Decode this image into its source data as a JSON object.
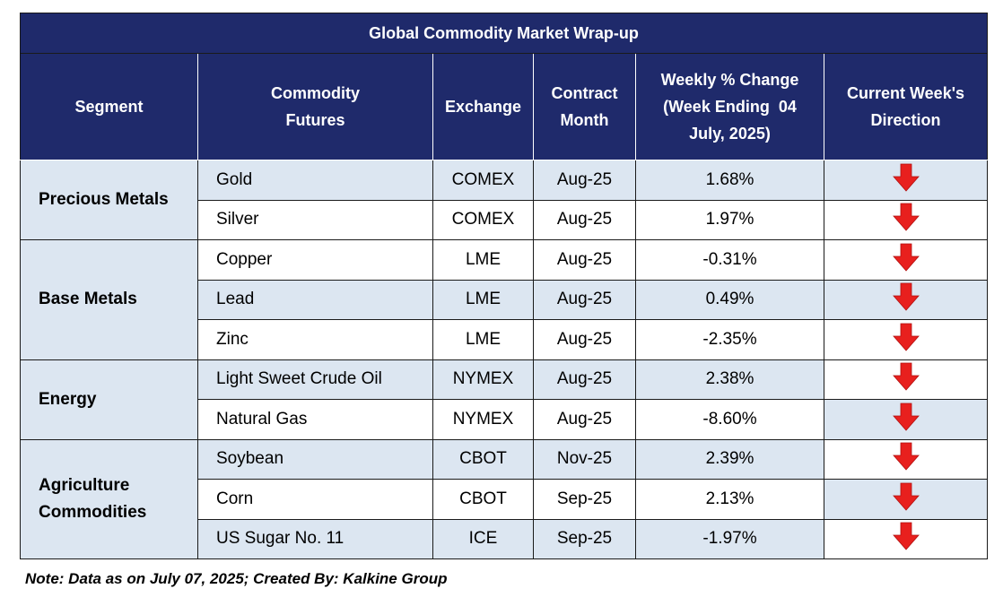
{
  "title": "Global Commodity Market Wrap-up",
  "headers": {
    "segment": "Segment",
    "futures_l1": "Commodity",
    "futures_l2": "Futures",
    "exchange": "Exchange",
    "month_l1": "Contract",
    "month_l2": "Month",
    "change_l1": "Weekly % Change",
    "change_l2": "(Week Ending  04",
    "change_l3": "July, 2025)",
    "direction_l1": "Current Week's",
    "direction_l2": "Direction"
  },
  "segments": {
    "precious": "Precious Metals",
    "base": "Base Metals",
    "energy": "Energy",
    "agri_l1": "Agriculture",
    "agri_l2": "Commodities"
  },
  "rows": [
    {
      "commodity": "Gold",
      "exchange": "COMEX",
      "month": "Aug-25",
      "change": "1.68%",
      "direction": "down"
    },
    {
      "commodity": "Silver",
      "exchange": "COMEX",
      "month": "Aug-25",
      "change": "1.97%",
      "direction": "down"
    },
    {
      "commodity": "Copper",
      "exchange": "LME",
      "month": "Aug-25",
      "change": "-0.31%",
      "direction": "down"
    },
    {
      "commodity": "Lead",
      "exchange": "LME",
      "month": "Aug-25",
      "change": "0.49%",
      "direction": "down"
    },
    {
      "commodity": "Zinc",
      "exchange": "LME",
      "month": "Aug-25",
      "change": "-2.35%",
      "direction": "down"
    },
    {
      "commodity": "Light Sweet Crude Oil",
      "exchange": "NYMEX",
      "month": "Aug-25",
      "change": "2.38%",
      "direction": "down"
    },
    {
      "commodity": "Natural Gas",
      "exchange": "NYMEX",
      "month": "Aug-25",
      "change": "-8.60%",
      "direction": "down"
    },
    {
      "commodity": "Soybean",
      "exchange": "CBOT",
      "month": "Nov-25",
      "change": "2.39%",
      "direction": "down"
    },
    {
      "commodity": "Corn",
      "exchange": "CBOT",
      "month": "Sep-25",
      "change": "2.13%",
      "direction": "down"
    },
    {
      "commodity": "US Sugar No. 11",
      "exchange": "ICE",
      "month": "Sep-25",
      "change": "-1.97%",
      "direction": "down"
    }
  ],
  "note": "Note: Data as on July 07, 2025; Created By: Kalkine Group",
  "colors": {
    "header_bg": "#1f2a6b",
    "band": "#dce6f1",
    "arrow": "#e8201e"
  }
}
